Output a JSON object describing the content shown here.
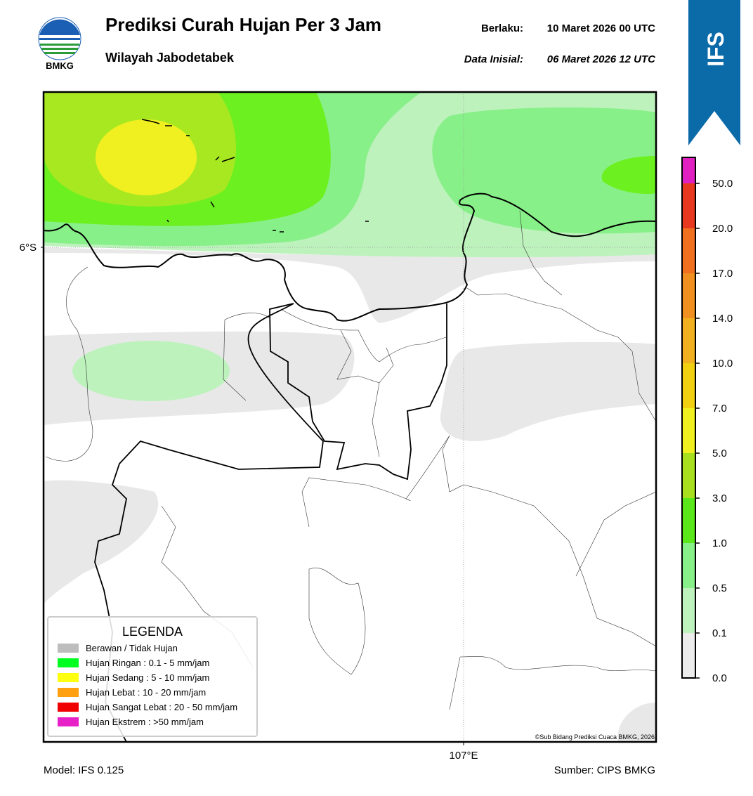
{
  "header": {
    "logo_text": "BMKG",
    "title": "Prediksi Curah Hujan Per 3 Jam",
    "subtitle": "Wilayah Jabodetabek",
    "valid_label": "Berlaku:",
    "valid_value": "10 Maret 2026 00 UTC",
    "init_label": "Data Inisial:",
    "init_value": "06 Maret 2026 12 UTC",
    "badge": "IFS"
  },
  "map": {
    "lat_label": "6°S",
    "lon_label": "107°E",
    "credit": "©Sub Bidang Prediksi Cuaca BMKG, 2026"
  },
  "legend": {
    "title": "LEGENDA",
    "items": [
      "Berawan / Tidak Hujan",
      "Hujan Ringan : 0.1 - 5 mm/jam",
      "Hujan Sedang : 5 - 10 mm/jam",
      "Hujan Lebat : 10 - 20 mm/jam",
      "Hujan Sangat Lebat : 20 - 50 mm/jam",
      "Hujan Ekstrem : >50 mm/jam"
    ]
  },
  "colorbar": {
    "ticks": [
      "0.0",
      "0.1",
      "0.5",
      "1.0",
      "3.0",
      "5.0",
      "7.0",
      "10.0",
      "14.0",
      "17.0",
      "20.0",
      "50.0"
    ]
  },
  "footer": {
    "model": "Model: IFS 0.125",
    "source": "Sumber: CIPS BMKG"
  }
}
